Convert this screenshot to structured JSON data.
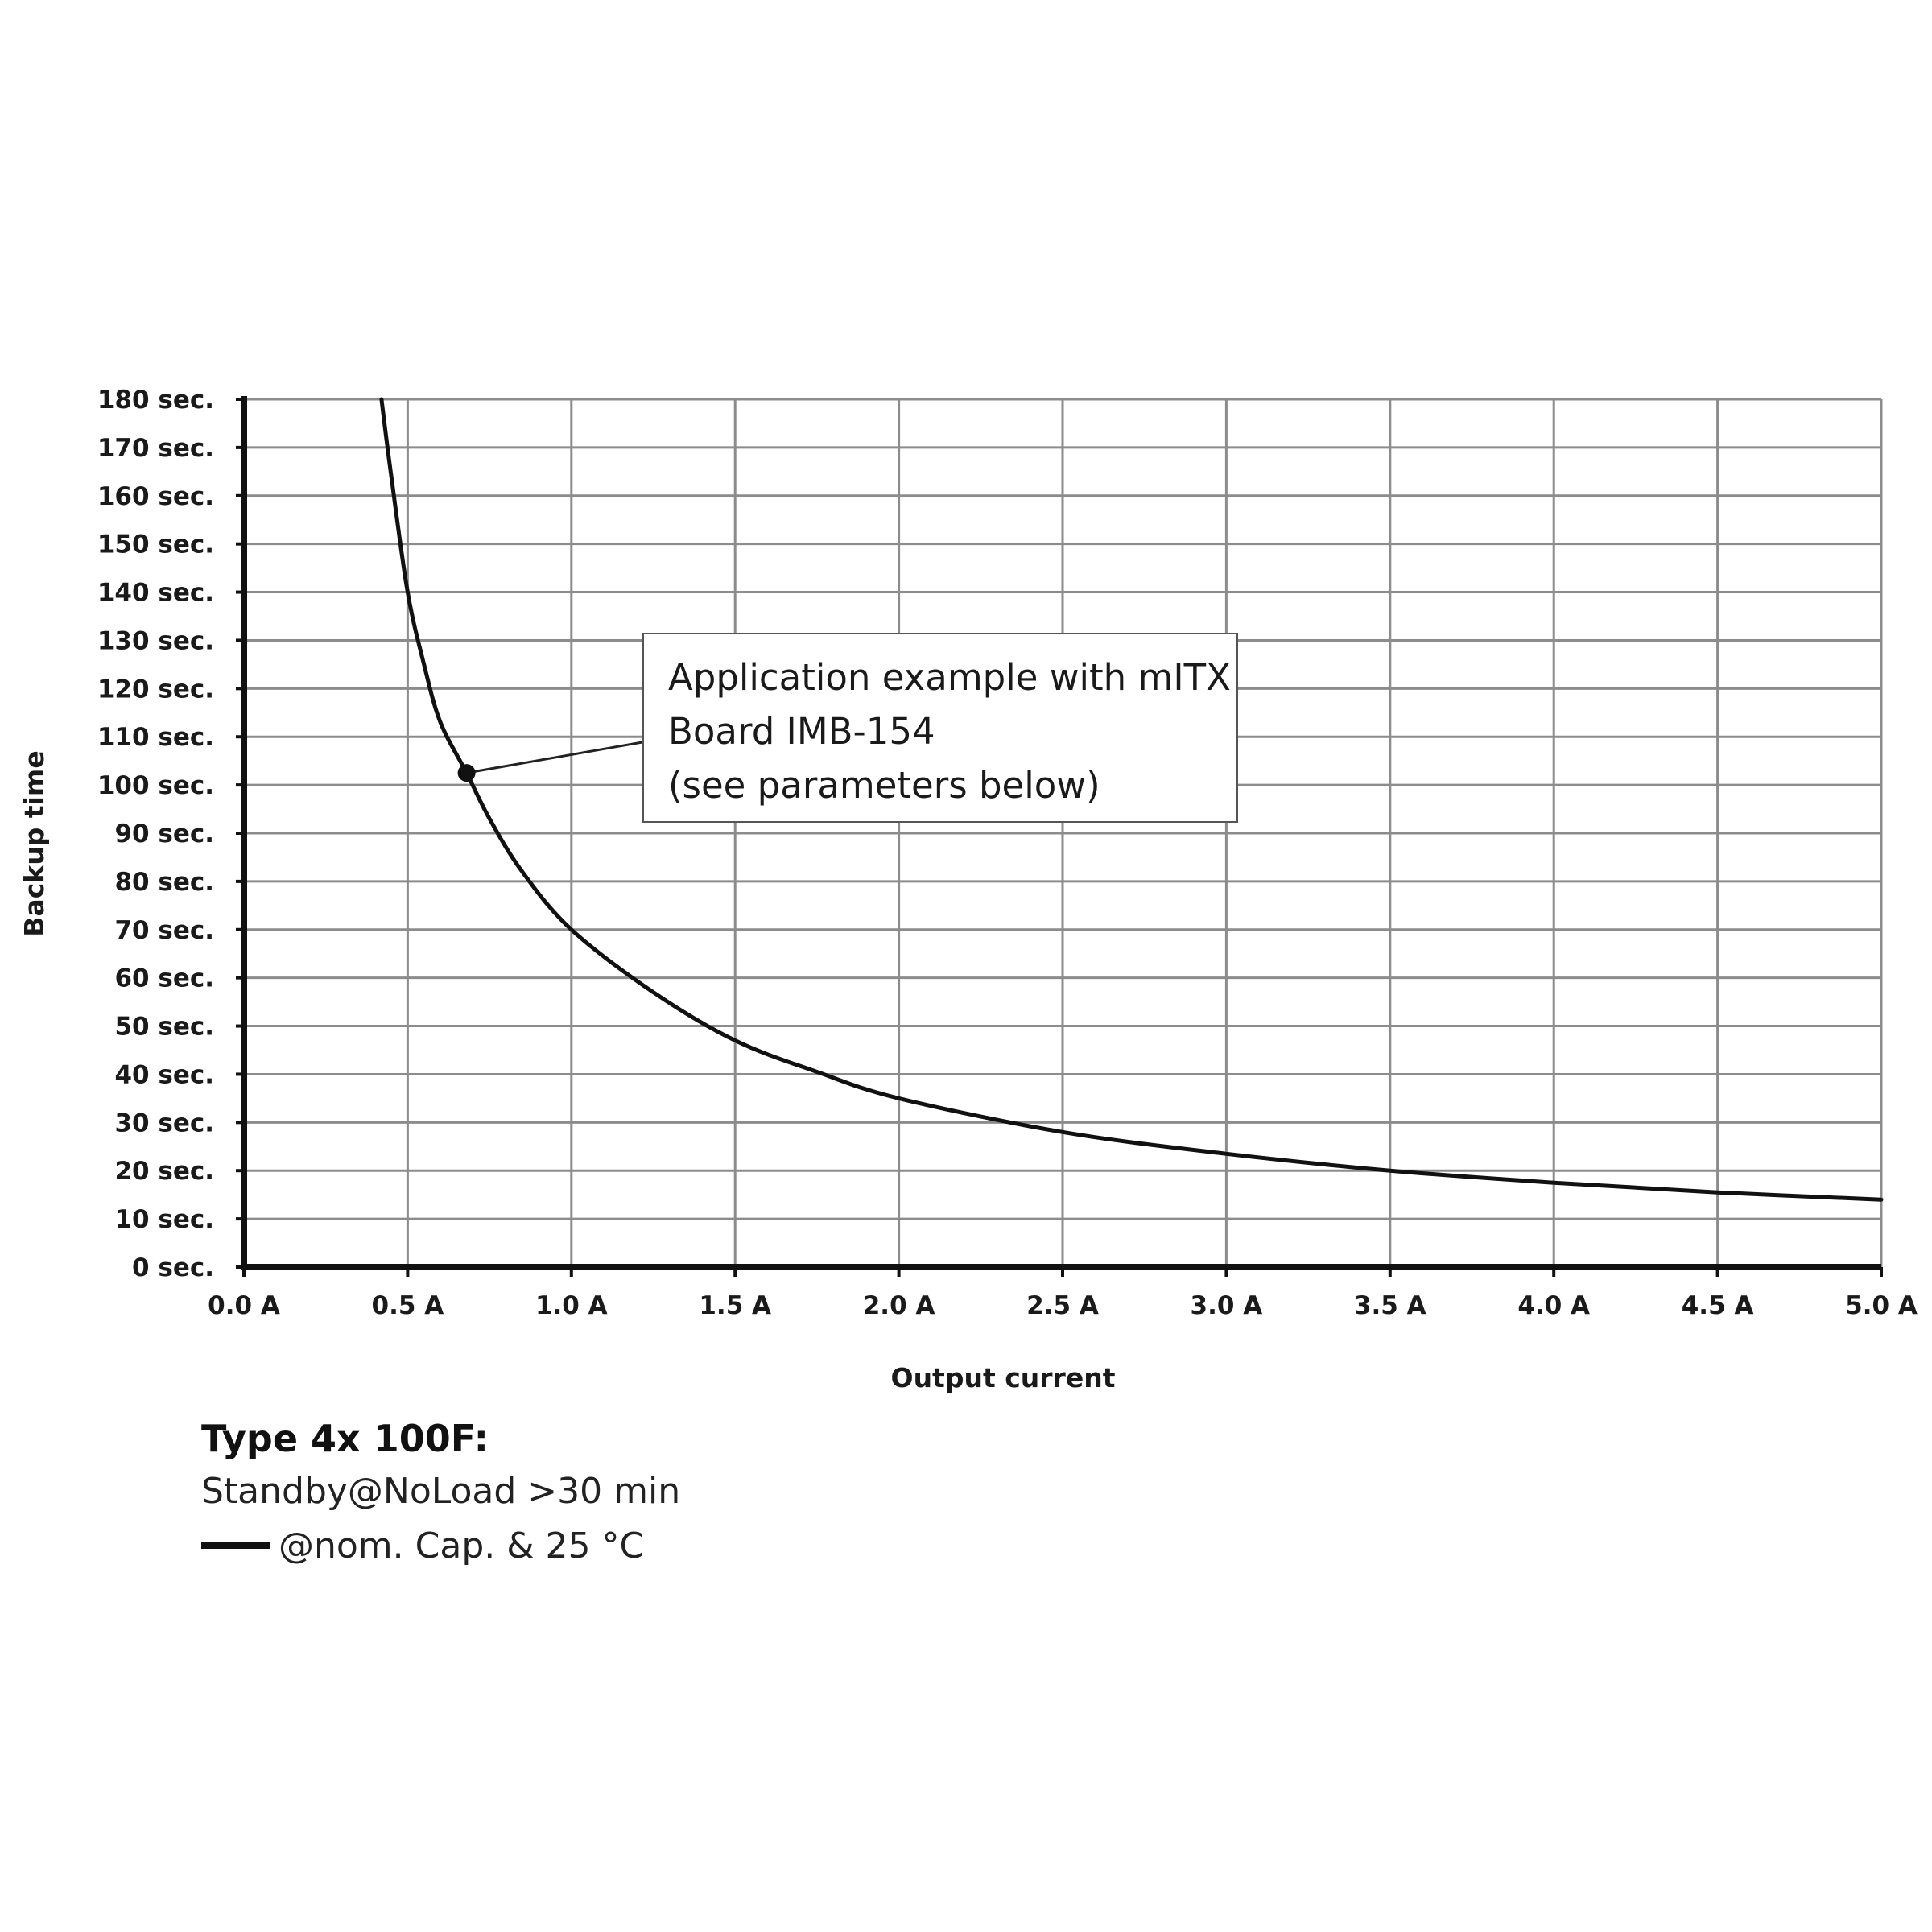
{
  "chart_data": {
    "type": "line",
    "title": "",
    "xlabel": "Output current",
    "ylabel": "Backup time",
    "xlim": [
      0,
      5
    ],
    "ylim": [
      0,
      180
    ],
    "x_ticks": [
      0,
      0.5,
      1,
      1.5,
      2,
      2.5,
      3,
      3.5,
      4,
      4.5,
      5
    ],
    "x_tick_labels": [
      "0.0 A",
      "0.5 A",
      "1.0 A",
      "1.5 A",
      "2.0 A",
      "2.5 A",
      "3.0 A",
      "3.5 A",
      "4.0 A",
      "4.5 A",
      "5.0 A"
    ],
    "y_ticks": [
      0,
      10,
      20,
      30,
      40,
      50,
      60,
      70,
      80,
      90,
      100,
      110,
      120,
      130,
      140,
      150,
      160,
      170,
      180
    ],
    "y_tick_labels": [
      "0 sec.",
      "10 sec.",
      "20 sec.",
      "30 sec.",
      "40 sec.",
      "50 sec.",
      "60 sec.",
      "70 sec.",
      "80 sec.",
      "90 sec.",
      "100 sec.",
      "110 sec.",
      "120 sec.",
      "130 sec.",
      "140 sec.",
      "150 sec.",
      "160 sec.",
      "170 sec.",
      "180 sec."
    ],
    "grid": true,
    "series": [
      {
        "name": "@nom. Cap. & 25 °C",
        "color": "#111111",
        "points": [
          [
            0.42,
            180
          ],
          [
            0.45,
            164
          ],
          [
            0.5,
            140
          ],
          [
            0.55,
            125
          ],
          [
            0.6,
            113
          ],
          [
            0.68,
            102.5
          ],
          [
            0.75,
            93
          ],
          [
            0.85,
            82
          ],
          [
            1.0,
            70
          ],
          [
            1.25,
            57
          ],
          [
            1.5,
            47
          ],
          [
            1.75,
            40.5
          ],
          [
            2.0,
            35
          ],
          [
            2.5,
            28
          ],
          [
            3.0,
            23.5
          ],
          [
            3.5,
            20
          ],
          [
            4.0,
            17.5
          ],
          [
            4.5,
            15.5
          ],
          [
            5.0,
            14
          ]
        ]
      }
    ],
    "annotation": {
      "x": 0.68,
      "y": 102.5,
      "lines": [
        "Application example with mITX",
        "Board IMB-154",
        "(see parameters below)"
      ]
    },
    "legend": {
      "title": "Type 4x 100F:",
      "line1": "Standby@NoLoad >30 min",
      "line2": "@nom. Cap. & 25 °C"
    }
  }
}
